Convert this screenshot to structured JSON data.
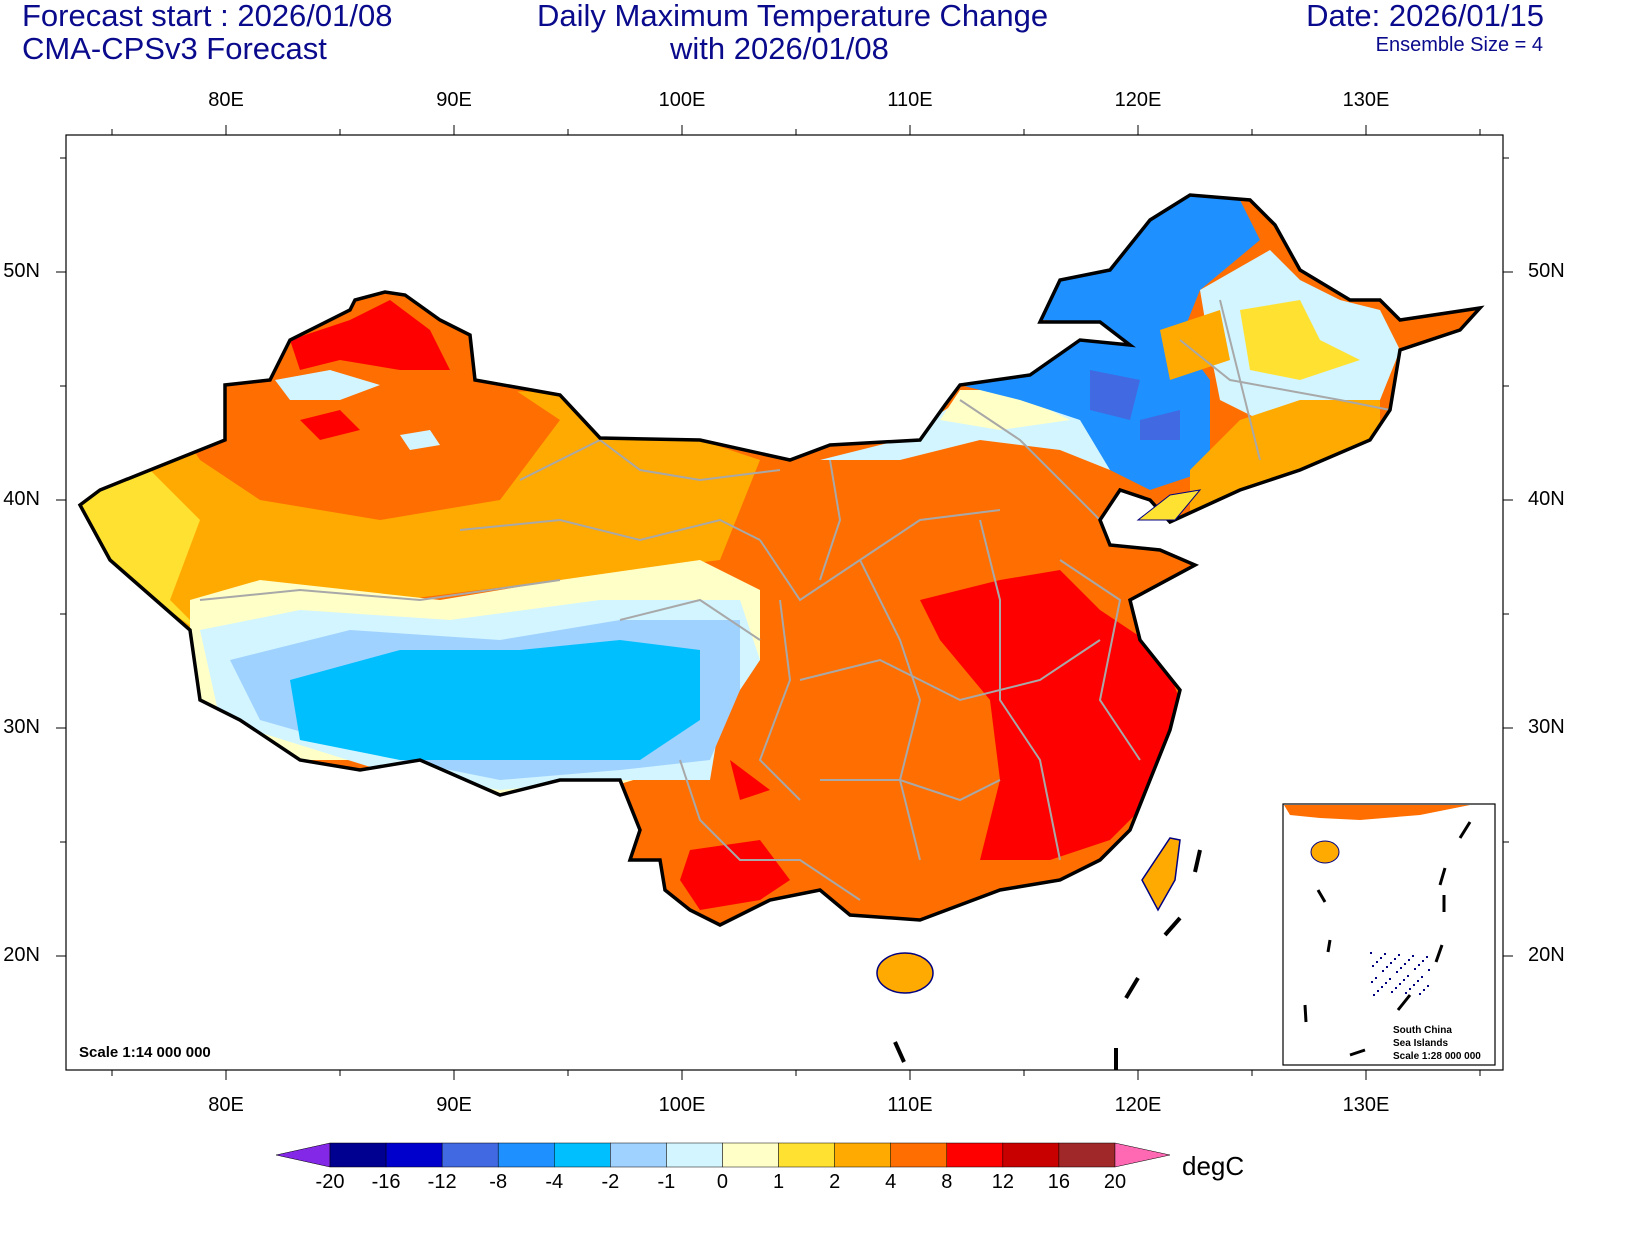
{
  "header": {
    "forecast_start": "Forecast start : 2026/01/08",
    "model": "CMA-CPSv3 Forecast",
    "title_line1": "Daily Maximum Temperature Change",
    "title_line2": "with 2026/01/08",
    "date": "Date: 2026/01/15",
    "ensemble": "Ensemble Size = 4"
  },
  "axes": {
    "lon_labels": [
      "80E",
      "90E",
      "100E",
      "110E",
      "120E",
      "130E"
    ],
    "lat_labels": [
      "50N",
      "40N",
      "30N",
      "20N"
    ]
  },
  "map": {
    "scale": "Scale 1:14 000 000",
    "inset": {
      "line1": "South China",
      "line2": "Sea Islands",
      "line3": "Scale 1:28 000 000"
    }
  },
  "colorbar": {
    "unit": "degC",
    "labels": [
      "-20",
      "-16",
      "-12",
      "-8",
      "-4",
      "-2",
      "-1",
      "0",
      "1",
      "2",
      "4",
      "8",
      "12",
      "16",
      "20"
    ],
    "colors": [
      "#000090",
      "#0000cd",
      "#4169e1",
      "#1e90ff",
      "#00bfff",
      "#a0d2ff",
      "#d2f5ff",
      "#ffffc8",
      "#ffe132",
      "#ffaa00",
      "#ff6e00",
      "#ff0000",
      "#c80000",
      "#a02828"
    ],
    "under_color": "#8228e6",
    "over_color": "#ff69b4"
  }
}
